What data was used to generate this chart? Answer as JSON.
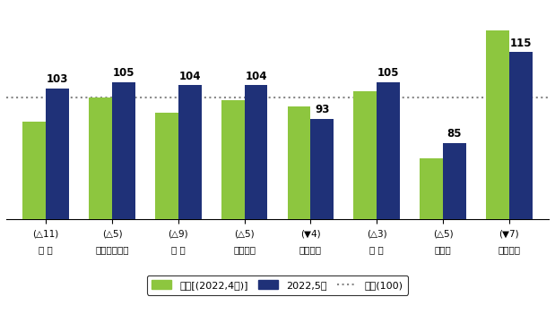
{
  "categories": [
    "업 황",
    "국내시장판매",
    "수 출",
    "생산수준",
    "재고수준",
    "투 자",
    "채산성",
    "제품단가"
  ],
  "sub_labels": [
    "(̑11)",
    "(̑5)",
    "(̑9)",
    "(̑5)",
    "(▼4)",
    "(̑3)",
    "(̑5)",
    "(▼7)"
  ],
  "prev_values": [
    92,
    100,
    95,
    99,
    97,
    102,
    80,
    122
  ],
  "curr_values": [
    103,
    105,
    104,
    104,
    93,
    105,
    85,
    115
  ],
  "baseline": 100,
  "bar_color_prev": "#8DC63F",
  "bar_color_curr": "#1F3178",
  "baseline_color": "#888888",
  "background_color": "#FFFFFF",
  "legend_prev": "전월[(2022,4월)]",
  "legend_curr": "2022,5월",
  "legend_base": "기준(100)",
  "ylim": [
    60,
    130
  ],
  "bar_width": 0.35,
  "figsize": [
    6.19,
    3.6
  ],
  "dpi": 100
}
